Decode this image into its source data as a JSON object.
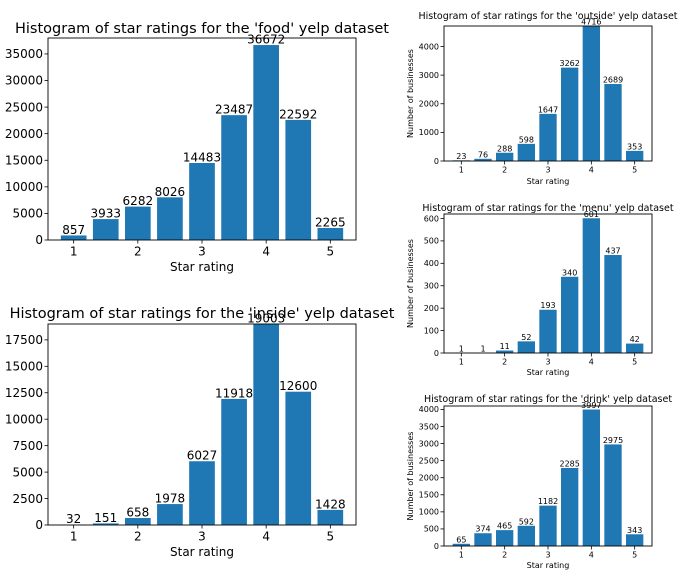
{
  "chart_data": [
    {
      "type": "bar",
      "title": "Histogram of star ratings for the 'food' yelp dataset",
      "xlabel": "Star rating",
      "ylabel": "",
      "categories": [
        "1",
        "1.5",
        "2",
        "2.5",
        "3",
        "3.5",
        "4",
        "4.5",
        "5"
      ],
      "x": [
        1,
        1.5,
        2,
        2.5,
        3,
        3.5,
        4,
        4.5,
        5
      ],
      "values": [
        857,
        3933,
        6282,
        8026,
        14483,
        23487,
        36672,
        22592,
        2265
      ],
      "xticks": [
        1,
        2,
        3,
        4,
        5
      ],
      "yticks": [
        0,
        5000,
        10000,
        15000,
        20000,
        25000,
        30000,
        35000
      ],
      "ylim": [
        0,
        38000
      ],
      "bar_color": "#1f77b4"
    },
    {
      "type": "bar",
      "title": "Histogram of star ratings for the 'inside' yelp dataset",
      "xlabel": "Star rating",
      "ylabel": "",
      "categories": [
        "1",
        "1.5",
        "2",
        "2.5",
        "3",
        "3.5",
        "4",
        "4.5",
        "5"
      ],
      "x": [
        1,
        1.5,
        2,
        2.5,
        3,
        3.5,
        4,
        4.5,
        5
      ],
      "values": [
        32,
        151,
        658,
        1978,
        6027,
        11918,
        19003,
        12600,
        1428
      ],
      "xticks": [
        1,
        2,
        3,
        4,
        5
      ],
      "yticks": [
        0,
        2500,
        5000,
        7500,
        10000,
        12500,
        15000,
        17500
      ],
      "ylim": [
        0,
        19000
      ],
      "bar_color": "#1f77b4"
    },
    {
      "type": "bar",
      "title": "Histogram of star ratings for the 'outside' yelp dataset",
      "xlabel": "Star rating",
      "ylabel": "Number of businesses",
      "categories": [
        "1",
        "1.5",
        "2",
        "2.5",
        "3",
        "3.5",
        "4",
        "4.5",
        "5"
      ],
      "x": [
        1,
        1.5,
        2,
        2.5,
        3,
        3.5,
        4,
        4.5,
        5
      ],
      "values": [
        23,
        76,
        288,
        598,
        1647,
        3262,
        4716,
        2689,
        353
      ],
      "xticks": [
        1,
        2,
        3,
        4,
        5
      ],
      "yticks": [
        0,
        1000,
        2000,
        3000,
        4000
      ],
      "ylim": [
        0,
        4716
      ],
      "bar_color": "#1f77b4"
    },
    {
      "type": "bar",
      "title": "Histogram of star ratings for the 'menu' yelp dataset",
      "xlabel": "Star rating",
      "ylabel": "Number of businesses",
      "categories": [
        "1",
        "1.5",
        "2",
        "2.5",
        "3",
        "3.5",
        "4",
        "4.5",
        "5"
      ],
      "x": [
        1,
        1.5,
        2,
        2.5,
        3,
        3.5,
        4,
        4.5,
        5
      ],
      "values": [
        1,
        1,
        11,
        52,
        193,
        340,
        601,
        437,
        42
      ],
      "xticks": [
        1,
        2,
        3,
        4,
        5
      ],
      "yticks": [
        0,
        100,
        200,
        300,
        400,
        500,
        600
      ],
      "ylim": [
        0,
        620
      ],
      "bar_color": "#1f77b4"
    },
    {
      "type": "bar",
      "title": "Histogram of star ratings for the 'drink' yelp dataset",
      "xlabel": "Star rating",
      "ylabel": "Number of businesses",
      "categories": [
        "1",
        "1.5",
        "2",
        "2.5",
        "3",
        "3.5",
        "4",
        "4.5",
        "5"
      ],
      "x": [
        1,
        1.5,
        2,
        2.5,
        3,
        3.5,
        4,
        4.5,
        5
      ],
      "values": [
        65,
        374,
        465,
        592,
        1182,
        2285,
        3997,
        2975,
        343
      ],
      "xticks": [
        1,
        2,
        3,
        4,
        5
      ],
      "yticks": [
        0,
        500,
        1000,
        1500,
        2000,
        2500,
        3000,
        3500,
        4000
      ],
      "ylim": [
        0,
        4100
      ],
      "bar_color": "#1f77b4"
    }
  ]
}
